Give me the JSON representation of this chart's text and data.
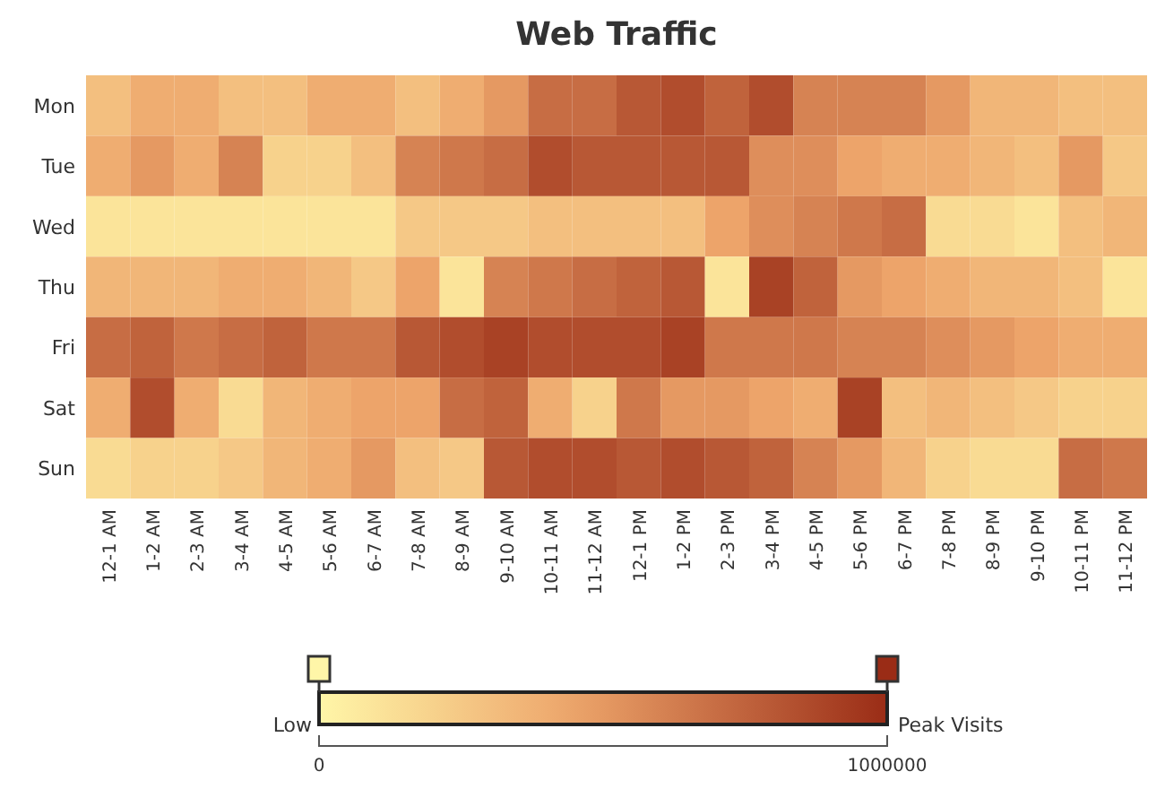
{
  "chart_data": {
    "type": "heatmap",
    "title": "Web Traffic",
    "categories": [
      "12-1 AM",
      "1-2 AM",
      "2-3 AM",
      "3-4 AM",
      "4-5 AM",
      "5-6 AM",
      "6-7 AM",
      "7-8 AM",
      "8-9 AM",
      "9-10 AM",
      "10-11 AM",
      "11-12 AM",
      "12-1 PM",
      "1-2 PM",
      "2-3 PM",
      "3-4 PM",
      "4-5 PM",
      "5-6 PM",
      "6-7 PM",
      "7-8 PM",
      "8-9 PM",
      "9-10 PM",
      "10-11 PM",
      "11-12 PM"
    ],
    "y_categories": [
      "Mon",
      "Tue",
      "Wed",
      "Thu",
      "Fri",
      "Sat",
      "Sun"
    ],
    "cells": [
      [
        300000,
        400000,
        400000,
        300000,
        300000,
        400000,
        400000,
        300000,
        400000,
        500000,
        700000,
        700000,
        800000,
        850000,
        750000,
        850000,
        600000,
        600000,
        600000,
        500000,
        350000,
        350000,
        300000,
        300000
      ],
      [
        400000,
        500000,
        400000,
        600000,
        200000,
        200000,
        300000,
        600000,
        650000,
        700000,
        850000,
        800000,
        800000,
        800000,
        800000,
        550000,
        550000,
        450000,
        400000,
        400000,
        350000,
        300000,
        500000,
        250000
      ],
      [
        100000,
        100000,
        100000,
        100000,
        100000,
        100000,
        100000,
        250000,
        250000,
        250000,
        300000,
        300000,
        300000,
        300000,
        450000,
        550000,
        600000,
        650000,
        700000,
        150000,
        150000,
        100000,
        300000,
        350000
      ],
      [
        350000,
        350000,
        350000,
        400000,
        400000,
        350000,
        250000,
        450000,
        100000,
        600000,
        650000,
        700000,
        750000,
        800000,
        100000,
        900000,
        750000,
        500000,
        450000,
        400000,
        350000,
        350000,
        300000,
        100000
      ],
      [
        700000,
        750000,
        650000,
        700000,
        750000,
        650000,
        650000,
        800000,
        850000,
        900000,
        850000,
        850000,
        850000,
        900000,
        650000,
        650000,
        650000,
        600000,
        600000,
        550000,
        500000,
        450000,
        400000,
        400000
      ],
      [
        400000,
        850000,
        400000,
        150000,
        350000,
        400000,
        450000,
        450000,
        700000,
        750000,
        400000,
        200000,
        650000,
        500000,
        500000,
        450000,
        400000,
        900000,
        300000,
        350000,
        300000,
        250000,
        200000,
        200000
      ],
      [
        150000,
        200000,
        200000,
        250000,
        350000,
        400000,
        500000,
        300000,
        250000,
        800000,
        850000,
        850000,
        800000,
        850000,
        800000,
        750000,
        600000,
        500000,
        350000,
        200000,
        150000,
        150000,
        700000,
        650000
      ]
    ],
    "clim": [
      0,
      1000000
    ],
    "cticks": [
      0,
      1000000
    ],
    "annotations": [
      "Low",
      "Peak Visits"
    ]
  }
}
